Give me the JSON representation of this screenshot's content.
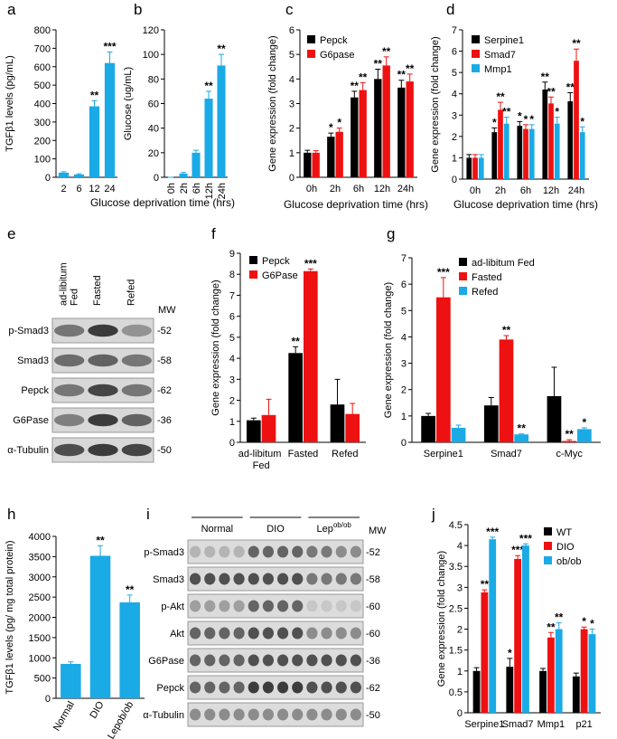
{
  "chart_data": [
    {
      "panel": "a",
      "type": "bar",
      "ylabel": "TGFβ1 levels (pg/mL)",
      "xlabel": "Glucose deprivation time (hrs)",
      "categories": [
        "2",
        "6",
        "12",
        "24"
      ],
      "values": [
        25,
        15,
        385,
        620
      ],
      "errors": [
        5,
        4,
        30,
        60
      ],
      "annotations": [
        null,
        null,
        "**",
        "***"
      ],
      "color": "#1aaae6",
      "ylim": [
        0,
        800
      ],
      "yticks": [
        0,
        100,
        200,
        300,
        400,
        500,
        600,
        700,
        800
      ]
    },
    {
      "panel": "b",
      "type": "bar",
      "ylabel": "Glucose (ug/mL)",
      "categories": [
        "0h",
        "2h",
        "6h",
        "12h",
        "24h"
      ],
      "values": [
        0,
        3,
        20,
        64,
        91
      ],
      "errors": [
        0,
        1,
        2,
        6,
        9
      ],
      "annotations": [
        null,
        null,
        null,
        "**",
        "**"
      ],
      "color": "#1aaae6",
      "ylim": [
        0,
        120
      ],
      "yticks": [
        0,
        20,
        40,
        60,
        80,
        100,
        120
      ]
    },
    {
      "panel": "c",
      "type": "bar",
      "ylabel": "Gene expression (fold change)",
      "xlabel": "Glucose deprivation time (hrs)",
      "categories": [
        "0h",
        "2h",
        "6h",
        "12h",
        "24h"
      ],
      "series": [
        {
          "name": "Pepck",
          "color": "#000000",
          "values": [
            1,
            1.65,
            3.25,
            4,
            3.65
          ],
          "errors": [
            0.1,
            0.15,
            0.25,
            0.4,
            0.3
          ],
          "annotations": [
            null,
            "*",
            "**",
            "**",
            "**"
          ]
        },
        {
          "name": "G6pase",
          "color": "#ee1111",
          "values": [
            1,
            1.85,
            3.55,
            4.55,
            3.9
          ],
          "errors": [
            0.08,
            0.15,
            0.3,
            0.35,
            0.3
          ],
          "annotations": [
            null,
            "*",
            "**",
            "**",
            "**"
          ]
        }
      ],
      "ylim": [
        0,
        6
      ],
      "yticks": [
        0,
        1,
        2,
        3,
        4,
        5,
        6
      ]
    },
    {
      "panel": "d",
      "type": "bar",
      "ylabel": "Gene expression (fold change)",
      "xlabel": "Glucose deprivation time (hrs)",
      "categories": [
        "0h",
        "2h",
        "6h",
        "12h",
        "24h"
      ],
      "series": [
        {
          "name": "Serpine1",
          "color": "#000000",
          "values": [
            1,
            2.2,
            2.5,
            4.2,
            3.65
          ],
          "errors": [
            0.15,
            0.2,
            0.2,
            0.35,
            0.4
          ],
          "annotations": [
            null,
            "*",
            "*",
            "**",
            "**"
          ]
        },
        {
          "name": "Smad7",
          "color": "#ee1111",
          "values": [
            1,
            3.25,
            2.35,
            3.55,
            5.55
          ],
          "errors": [
            0.15,
            0.35,
            0.2,
            0.3,
            0.55
          ],
          "annotations": [
            null,
            "**",
            "*",
            "**",
            "**"
          ]
        },
        {
          "name": "Mmp1",
          "color": "#1aaae6",
          "values": [
            1,
            2.6,
            2.35,
            2.6,
            2.2
          ],
          "errors": [
            0.15,
            0.3,
            0.2,
            0.3,
            0.25
          ],
          "annotations": [
            null,
            "**",
            "*",
            "*",
            "*"
          ]
        }
      ],
      "ylim": [
        0,
        7
      ],
      "yticks": [
        0,
        1,
        2,
        3,
        4,
        5,
        6,
        7
      ]
    },
    {
      "panel": "f",
      "type": "bar",
      "ylabel": "Gene expression (fold change)",
      "categories": [
        "ad-libitum Fed",
        "Fasted",
        "Refed"
      ],
      "series": [
        {
          "name": "Pepck",
          "color": "#000000",
          "values": [
            1.05,
            4.25,
            1.8
          ],
          "errors": [
            0.1,
            0.3,
            1.2
          ],
          "annotations": [
            null,
            "**",
            null
          ]
        },
        {
          "name": "G6Pase",
          "color": "#ee1111",
          "values": [
            1.3,
            8.15,
            1.35
          ],
          "errors": [
            0.75,
            0.1,
            0.5
          ],
          "annotations": [
            null,
            "***",
            null
          ]
        }
      ],
      "ylim": [
        0,
        9
      ],
      "yticks": [
        0,
        1,
        2,
        3,
        4,
        5,
        6,
        7,
        8,
        9
      ]
    },
    {
      "panel": "g",
      "type": "bar",
      "ylabel": "Gene expression (fold change)",
      "categories": [
        "Serpine1",
        "Smad7",
        "c-Myc"
      ],
      "series": [
        {
          "name": "ad-libitum Fed",
          "color": "#000000",
          "values": [
            1,
            1.4,
            1.75
          ],
          "errors": [
            0.1,
            0.3,
            1.1
          ],
          "annotations": [
            null,
            null,
            null
          ]
        },
        {
          "name": "Fasted",
          "color": "#ee1111",
          "values": [
            5.5,
            3.9,
            0.05
          ],
          "errors": [
            0.75,
            0.15,
            0.05
          ],
          "annotations": [
            "***",
            "**",
            "**"
          ]
        },
        {
          "name": "Refed",
          "color": "#1aaae6",
          "values": [
            0.55,
            0.3,
            0.5
          ],
          "errors": [
            0.1,
            0.02,
            0.05
          ],
          "annotations": [
            null,
            "**",
            "*"
          ]
        }
      ],
      "ylim": [
        0,
        7
      ],
      "yticks": [
        0,
        1,
        2,
        3,
        4,
        5,
        6,
        7
      ]
    },
    {
      "panel": "h",
      "type": "bar",
      "ylabel": "TGFβ1 levels (pg/ mg total protein)",
      "categories": [
        "Normal",
        "DIO",
        "Lepob/ob"
      ],
      "values": [
        850,
        3520,
        2370
      ],
      "errors": [
        50,
        250,
        180
      ],
      "annotations": [
        null,
        "**",
        "**"
      ],
      "color": "#1aaae6",
      "ylim": [
        0,
        4000
      ],
      "yticks": [
        0,
        500,
        1000,
        1500,
        2000,
        2500,
        3000,
        3500,
        4000
      ]
    },
    {
      "panel": "j",
      "type": "bar",
      "ylabel": "Gene expression (fold change)",
      "categories": [
        "Serpine1",
        "Smad7",
        "Mmp1",
        "p21"
      ],
      "series": [
        {
          "name": "WT",
          "color": "#000000",
          "values": [
            1,
            1.1,
            1,
            0.87
          ],
          "errors": [
            0.08,
            0.2,
            0.06,
            0.08
          ],
          "annotations": [
            null,
            "*",
            null,
            null
          ]
        },
        {
          "name": "DIO",
          "color": "#ee1111",
          "values": [
            2.88,
            3.68,
            1.8,
            2
          ],
          "errors": [
            0.06,
            0.08,
            0.12,
            0.05
          ],
          "annotations": [
            "**",
            "***",
            "**",
            "*"
          ]
        },
        {
          "name": "ob/ob",
          "color": "#1aaae6",
          "values": [
            4.15,
            4,
            2,
            1.88
          ],
          "errors": [
            0.05,
            0.04,
            0.15,
            0.12
          ],
          "annotations": [
            "***",
            "***",
            "**",
            "*"
          ]
        }
      ],
      "ylim": [
        0,
        4.5
      ],
      "yticks": [
        0,
        0.5,
        1,
        1.5,
        2,
        2.5,
        3,
        3.5,
        4,
        4.5
      ]
    }
  ],
  "blots": [
    {
      "panel": "e",
      "lanes": [
        "ad-libitum Fed",
        "Fasted",
        "Refed"
      ],
      "mw_header": "MW",
      "rows": [
        {
          "name": "p-Smad3",
          "mw": "-52"
        },
        {
          "name": "Smad3",
          "mw": "-58"
        },
        {
          "name": "Pepck",
          "mw": "-62"
        },
        {
          "name": "G6Pase",
          "mw": "-36"
        },
        {
          "name": "α-Tubulin",
          "mw": "-50"
        }
      ]
    },
    {
      "panel": "i",
      "groups": [
        {
          "text": "Normal"
        },
        {
          "text": "DIO"
        },
        {
          "text": "Lep",
          "sup": "ob/ob"
        }
      ],
      "mw_header": "MW",
      "rows": [
        {
          "name": "p-Smad3",
          "mw": "-52"
        },
        {
          "name": "Smad3",
          "mw": "-58"
        },
        {
          "name": "p-Akt",
          "mw": "-60"
        },
        {
          "name": "Akt",
          "mw": "-60"
        },
        {
          "name": "G6Pase",
          "mw": "-36"
        },
        {
          "name": "Pepck",
          "mw": "-62"
        },
        {
          "name": "α-Tubulin",
          "mw": "-50"
        }
      ]
    }
  ]
}
